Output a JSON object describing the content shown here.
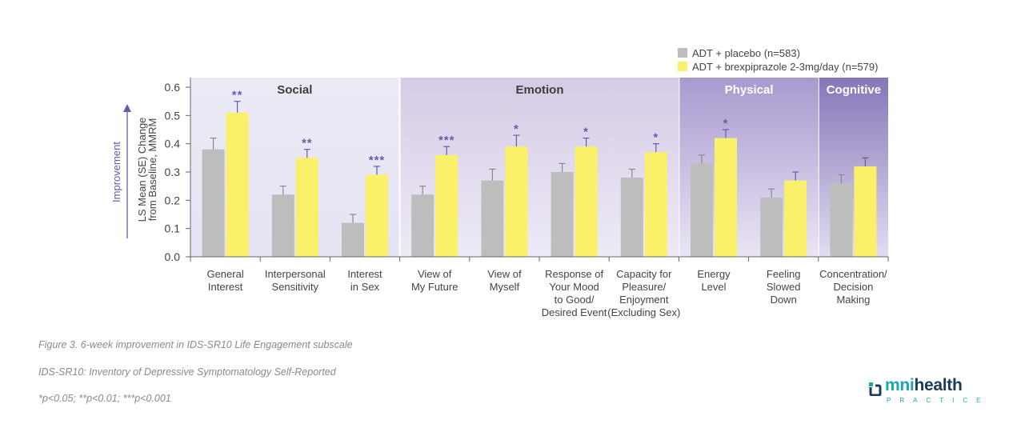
{
  "chart_data": {
    "type": "bar",
    "ylabel": "LS Mean (SE) Change from Baseline, MMRM",
    "ylabel_lines": [
      "LS Mean (SE) Change",
      "from Baseline, MMRM"
    ],
    "direction_label": "Improvement",
    "ylim": [
      0,
      0.6
    ],
    "yticks": [
      "0.0",
      "0.1",
      "0.2",
      "0.3",
      "0.4",
      "0.5",
      "0.6"
    ],
    "categories": [
      "General Interest",
      "Interpersonal Sensitivity",
      "Interest in Sex",
      "View of My Future",
      "View of Myself",
      "Response of Your Mood to Good/ Desired Event",
      "Capacity for Pleasure/ Enjoyment (Excluding Sex)",
      "Energy Level",
      "Feeling Slowed Down",
      "Concentration/ Decision Making"
    ],
    "category_lines": [
      [
        "General",
        "Interest"
      ],
      [
        "Interpersonal",
        "Sensitivity"
      ],
      [
        "Interest",
        "in Sex"
      ],
      [
        "View of",
        "My Future"
      ],
      [
        "View of",
        "Myself"
      ],
      [
        "Response of",
        "Your Mood",
        "to Good/",
        "Desired Event"
      ],
      [
        "Capacity for",
        "Pleasure/",
        "Enjoyment",
        "(Excluding Sex)"
      ],
      [
        "Energy",
        "Level"
      ],
      [
        "Feeling",
        "Slowed",
        "Down"
      ],
      [
        "Concentration/",
        "Decision",
        "Making"
      ]
    ],
    "series": [
      {
        "name": "ADT + placebo (n=583)",
        "color": "#bdbdbd",
        "values": [
          0.38,
          0.22,
          0.12,
          0.22,
          0.27,
          0.3,
          0.28,
          0.33,
          0.21,
          0.26
        ],
        "errors": [
          0.04,
          0.03,
          0.03,
          0.03,
          0.04,
          0.03,
          0.03,
          0.03,
          0.03,
          0.03
        ]
      },
      {
        "name": "ADT + brexpiprazole 2-3mg/day (n=579)",
        "color": "#fbf06a",
        "values": [
          0.51,
          0.35,
          0.29,
          0.36,
          0.39,
          0.39,
          0.37,
          0.42,
          0.27,
          0.32
        ],
        "errors": [
          0.04,
          0.03,
          0.03,
          0.03,
          0.04,
          0.03,
          0.03,
          0.03,
          0.03,
          0.03
        ]
      }
    ],
    "significance": [
      "**",
      "**",
      "***",
      "***",
      "*",
      "*",
      "*",
      "*",
      "",
      ""
    ],
    "groups": [
      {
        "label": "Social",
        "start": 0,
        "end": 2,
        "color_top": "#eceaf6",
        "color_bottom": "#e6e3f3"
      },
      {
        "label": "Emotion",
        "start": 3,
        "end": 6,
        "color_top": "#d5cbe6",
        "color_bottom": "#eeeaf6"
      },
      {
        "label": "Physical",
        "start": 7,
        "end": 8,
        "color_top": "#a999cf",
        "color_bottom": "#eae5f4"
      },
      {
        "label": "Cognitive",
        "start": 9,
        "end": 9,
        "color_top": "#8676b8",
        "color_bottom": "#e2ddf0"
      }
    ],
    "legend_position": "top-right",
    "grid": false,
    "accent_color": "#6a5aa8"
  },
  "captions": {
    "figure": "Figure 3. 6-week improvement in IDS-SR10 Life Engagement subscale",
    "abbrev": "IDS-SR10: Inventory of Depressive Symptomatology Self-Reported",
    "footnote": "*p<0.05; **p<0.01; ***p<0.001"
  },
  "logo": {
    "brand_a": "mni",
    "brand_b": "health",
    "sub": "PRACTICE"
  }
}
